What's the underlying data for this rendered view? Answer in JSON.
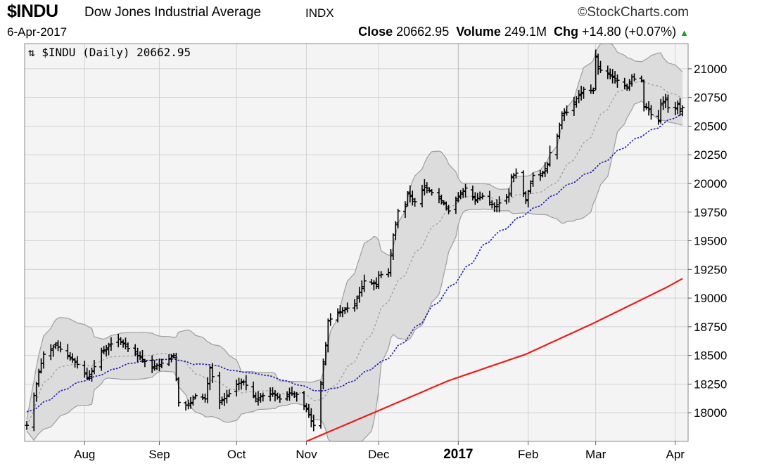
{
  "header": {
    "symbol": "$INDU",
    "name": "Dow Jones Industrial Average",
    "exchange": "INDX",
    "brand": "StockCharts.com",
    "brand_symbol": "©",
    "date": "6-Apr-2017",
    "close_label": "Close",
    "close_value": "20662.95",
    "volume_label": "Volume",
    "volume_value": "249.1M",
    "chg_label": "Chg",
    "chg_value": "+14.80 (+0.07%)",
    "chg_arrow": "▲"
  },
  "colors": {
    "price_bars": "#000000",
    "bollinger_fill": "#dcdcdc",
    "bollinger_edge": "#9e9e9e",
    "bollinger_mid": "#9a9a9a",
    "ma50": "#1b1bb0",
    "ma200": "#ee1c1c",
    "grid": "#d2d2d2",
    "plot_bg": "#f4f4f4",
    "up_arrow": "#17a317"
  },
  "chart_data": {
    "type": "ohlc",
    "legend": "⇅ $INDU (Daily) 20662.95",
    "y_ticks": [
      18000,
      18250,
      18500,
      18750,
      19000,
      19250,
      19500,
      19750,
      20000,
      20250,
      20500,
      20750,
      21000
    ],
    "ylim": [
      17750,
      21220
    ],
    "x_ticks": [
      {
        "label": "Aug",
        "date": "2016-08-01",
        "bold": false
      },
      {
        "label": "Sep",
        "date": "2016-09-01",
        "bold": false
      },
      {
        "label": "Oct",
        "date": "2016-10-03",
        "bold": false
      },
      {
        "label": "Nov",
        "date": "2016-11-01",
        "bold": false
      },
      {
        "label": "Dec",
        "date": "2016-12-01",
        "bold": false
      },
      {
        "label": "2017",
        "date": "2017-01-03",
        "bold": true
      },
      {
        "label": "Feb",
        "date": "2017-02-01",
        "bold": false
      },
      {
        "label": "Mar",
        "date": "2017-03-01",
        "bold": false
      },
      {
        "label": "Apr",
        "date": "2017-04-03",
        "bold": false
      }
    ],
    "close_keypoints": [
      [
        "2016-07-08",
        17890
      ],
      [
        "2016-07-11",
        18150
      ],
      [
        "2016-07-13",
        18350
      ],
      [
        "2016-07-15",
        18510
      ],
      [
        "2016-07-20",
        18590
      ],
      [
        "2016-07-25",
        18500
      ],
      [
        "2016-07-28",
        18450
      ],
      [
        "2016-08-02",
        18310
      ],
      [
        "2016-08-04",
        18360
      ],
      [
        "2016-08-08",
        18530
      ],
      [
        "2016-08-12",
        18600
      ],
      [
        "2016-08-15",
        18640
      ],
      [
        "2016-08-19",
        18560
      ],
      [
        "2016-08-24",
        18480
      ],
      [
        "2016-08-29",
        18400
      ],
      [
        "2016-09-01",
        18420
      ],
      [
        "2016-09-07",
        18500
      ],
      [
        "2016-09-09",
        18090
      ],
      [
        "2016-09-13",
        18060
      ],
      [
        "2016-09-16",
        18150
      ],
      [
        "2016-09-20",
        18120
      ],
      [
        "2016-09-22",
        18390
      ],
      [
        "2016-09-26",
        18090
      ],
      [
        "2016-09-29",
        18140
      ],
      [
        "2016-10-03",
        18250
      ],
      [
        "2016-10-06",
        18270
      ],
      [
        "2016-10-11",
        18120
      ],
      [
        "2016-10-14",
        18150
      ],
      [
        "2016-10-18",
        18170
      ],
      [
        "2016-10-21",
        18120
      ],
      [
        "2016-10-25",
        18170
      ],
      [
        "2016-10-28",
        18160
      ],
      [
        "2016-11-01",
        18030
      ],
      [
        "2016-11-03",
        17930
      ],
      [
        "2016-11-04",
        17890
      ],
      [
        "2016-11-07",
        18260
      ],
      [
        "2016-11-09",
        18590
      ],
      [
        "2016-11-10",
        18800
      ],
      [
        "2016-11-14",
        18870
      ],
      [
        "2016-11-17",
        18900
      ],
      [
        "2016-11-21",
        18950
      ],
      [
        "2016-11-25",
        19150
      ],
      [
        "2016-11-30",
        19120
      ],
      [
        "2016-12-01",
        19200
      ],
      [
        "2016-12-05",
        19220
      ],
      [
        "2016-12-07",
        19550
      ],
      [
        "2016-12-09",
        19760
      ],
      [
        "2016-12-12",
        19800
      ],
      [
        "2016-12-13",
        19910
      ],
      [
        "2016-12-16",
        19840
      ],
      [
        "2016-12-20",
        19980
      ],
      [
        "2016-12-23",
        19920
      ],
      [
        "2016-12-28",
        19830
      ],
      [
        "2016-12-30",
        19760
      ],
      [
        "2017-01-03",
        19880
      ],
      [
        "2017-01-06",
        19960
      ],
      [
        "2017-01-10",
        19860
      ],
      [
        "2017-01-13",
        19890
      ],
      [
        "2017-01-18",
        19800
      ],
      [
        "2017-01-20",
        19830
      ],
      [
        "2017-01-24",
        19900
      ],
      [
        "2017-01-25",
        20050
      ],
      [
        "2017-01-27",
        20090
      ],
      [
        "2017-01-31",
        19860
      ],
      [
        "2017-02-03",
        20070
      ],
      [
        "2017-02-07",
        20090
      ],
      [
        "2017-02-09",
        20170
      ],
      [
        "2017-02-10",
        20270
      ],
      [
        "2017-02-13",
        20410
      ],
      [
        "2017-02-15",
        20610
      ],
      [
        "2017-02-17",
        20620
      ],
      [
        "2017-02-21",
        20740
      ],
      [
        "2017-02-24",
        20820
      ],
      [
        "2017-02-28",
        20810
      ],
      [
        "2017-03-01",
        21110
      ],
      [
        "2017-03-02",
        21000
      ],
      [
        "2017-03-06",
        20950
      ],
      [
        "2017-03-10",
        20900
      ],
      [
        "2017-03-14",
        20840
      ],
      [
        "2017-03-16",
        20930
      ],
      [
        "2017-03-17",
        20910
      ],
      [
        "2017-03-20",
        20900
      ],
      [
        "2017-03-21",
        20670
      ],
      [
        "2017-03-23",
        20650
      ],
      [
        "2017-03-24",
        20600
      ],
      [
        "2017-03-27",
        20550
      ],
      [
        "2017-03-28",
        20700
      ],
      [
        "2017-03-30",
        20730
      ],
      [
        "2017-03-31",
        20660
      ],
      [
        "2017-04-03",
        20650
      ],
      [
        "2017-04-04",
        20690
      ],
      [
        "2017-04-05",
        20650
      ],
      [
        "2017-04-06",
        20663
      ]
    ],
    "series": [
      {
        "key": "bollinger",
        "type": "band"
      },
      {
        "key": "sma50",
        "type": "line",
        "style": "dotted"
      },
      {
        "key": "sma200",
        "type": "line",
        "keypoints": [
          [
            "2016-11-01",
            17750
          ],
          [
            "2016-11-30",
            18010
          ],
          [
            "2016-12-30",
            18280
          ],
          [
            "2017-01-31",
            18510
          ],
          [
            "2017-02-28",
            18780
          ],
          [
            "2017-03-31",
            19100
          ],
          [
            "2017-04-06",
            19170
          ]
        ]
      }
    ]
  }
}
